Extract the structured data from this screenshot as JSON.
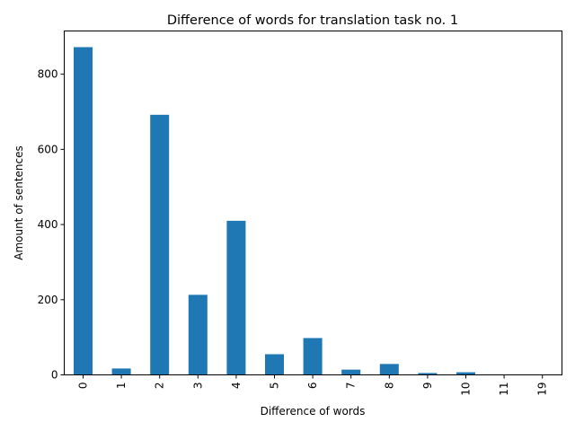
{
  "chart_data": {
    "type": "bar",
    "title": "Difference of words for translation task no. 1",
    "xlabel": "Difference of words",
    "ylabel": "Amount of sentences",
    "categories": [
      "0",
      "1",
      "2",
      "3",
      "4",
      "5",
      "6",
      "7",
      "8",
      "9",
      "10",
      "11",
      "19"
    ],
    "values": [
      872,
      17,
      692,
      213,
      410,
      55,
      98,
      14,
      29,
      5,
      7,
      1,
      1
    ],
    "ylim": [
      0,
      915
    ],
    "yticks": [
      "0",
      "200",
      "400",
      "600",
      "800"
    ],
    "bar_color": "#1f77b4",
    "grid": false,
    "legend": "none"
  }
}
